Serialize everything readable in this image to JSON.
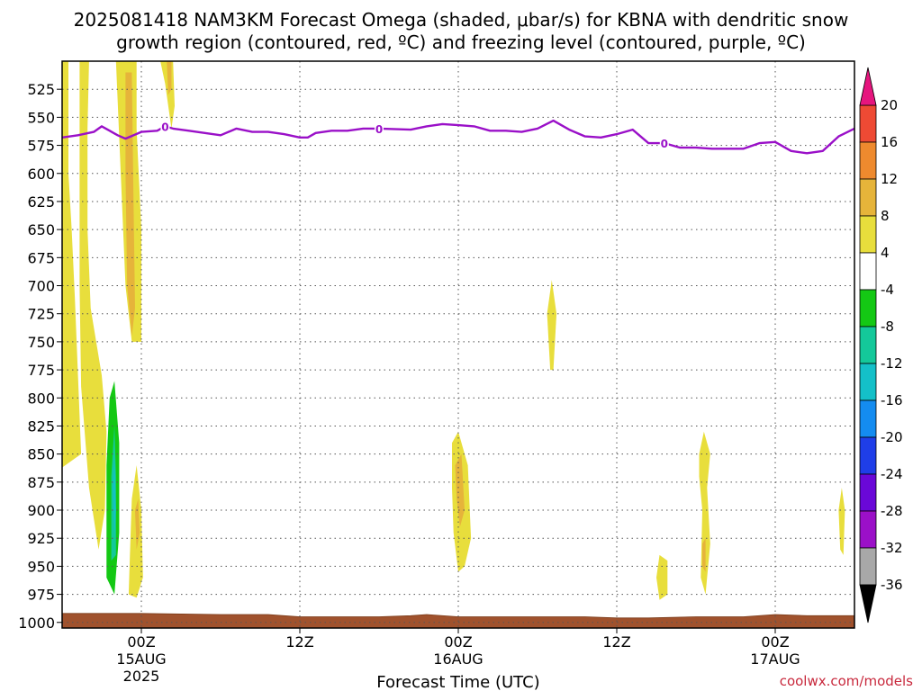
{
  "chart_data": {
    "type": "heatmap",
    "title_line1": "2025081418 NAM3KM Forecast Omega (shaded, μbar/s) for KBNA with dendritic snow",
    "title_line2": "growth region (contoured, red, ºC) and freezing level (contoured, purple, ºC)",
    "xlabel": "Forecast Time (UTC)",
    "credit": "coolwx.com/models",
    "y_ticks": [
      525,
      550,
      575,
      600,
      625,
      650,
      675,
      700,
      725,
      750,
      775,
      800,
      825,
      850,
      875,
      900,
      925,
      950,
      975,
      1000
    ],
    "y_range_hPa": [
      500,
      1005
    ],
    "y_axis_inverted": true,
    "x_range_hours": [
      -5,
      45
    ],
    "x_ticks": [
      {
        "hour": 0,
        "line1": "00Z",
        "line2": "15AUG",
        "line3": "2025"
      },
      {
        "hour": 10,
        "line1": "12Z",
        "line2": "",
        "line3": ""
      },
      {
        "hour": 20,
        "line1": "00Z",
        "line2": "16AUG",
        "line3": ""
      },
      {
        "hour": 30,
        "line1": "12Z",
        "line2": "",
        "line3": ""
      },
      {
        "hour": 40,
        "line1": "00Z",
        "line2": "17AUG",
        "line3": ""
      }
    ],
    "grid": true,
    "colorbar": {
      "levels": [
        -36,
        -32,
        -28,
        -24,
        -20,
        -16,
        -12,
        -8,
        -4,
        4,
        8,
        12,
        16,
        20
      ],
      "label_levels": [
        20,
        16,
        12,
        8,
        4,
        -4,
        -8,
        -12,
        -16,
        -20,
        -24,
        -28,
        -32,
        -36
      ],
      "colors": [
        "#a8a8a8",
        "#9b10c8",
        "#6a08d8",
        "#1f3ee8",
        "#148cf0",
        "#14c0c8",
        "#14c89a",
        "#14c814",
        "#ffffff",
        "#e8de3c",
        "#e6b43a",
        "#ee8a2e",
        "#ee4a34"
      ],
      "below_color": "#000000",
      "above_color": "#e6157e"
    },
    "freezing_level": {
      "label": "0",
      "color": "#9a10c8",
      "hours": [
        -5,
        -4,
        -3,
        -2.5,
        -2,
        -1.5,
        -1,
        0,
        1,
        1.5,
        2,
        3,
        4,
        5,
        6,
        7,
        8,
        9,
        10,
        10.5,
        11,
        12,
        13,
        14,
        15,
        17,
        18,
        19,
        20,
        21,
        22,
        23,
        24,
        25,
        26,
        27,
        28,
        29,
        30,
        31,
        32,
        33,
        34,
        35,
        36,
        37,
        38,
        39,
        40,
        41,
        42,
        43,
        44,
        45
      ],
      "pressures": [
        568,
        566,
        563,
        558,
        562,
        566,
        569,
        563,
        562,
        558,
        560,
        562,
        564,
        566,
        560,
        563,
        563,
        565,
        568,
        568,
        564,
        562,
        562,
        560,
        560,
        561,
        558,
        556,
        557,
        558,
        562,
        562,
        563,
        560,
        553,
        561,
        567,
        568,
        565,
        561,
        573,
        573,
        577,
        577,
        578,
        578,
        578,
        573,
        572,
        580,
        582,
        580,
        567,
        560
      ]
    },
    "omega_regions": [
      {
        "level": 4,
        "points": [
          [
            -5,
            500
          ],
          [
            -4.6,
            500
          ],
          [
            -4.6,
            600
          ],
          [
            -4.4,
            650
          ],
          [
            -4.2,
            710
          ],
          [
            -4,
            780
          ],
          [
            -3.8,
            850
          ],
          [
            -5,
            862
          ]
        ]
      },
      {
        "level": 4,
        "points": [
          [
            -3.9,
            500
          ],
          [
            -3.3,
            500
          ],
          [
            -3.4,
            560
          ],
          [
            -3.4,
            650
          ],
          [
            -3.2,
            720
          ],
          [
            -2.5,
            780
          ],
          [
            -2.2,
            830
          ],
          [
            -2.3,
            900
          ],
          [
            -2.7,
            935
          ],
          [
            -3.3,
            880
          ],
          [
            -3.8,
            790
          ],
          [
            -3.9,
            700
          ]
        ]
      },
      {
        "level": 4,
        "points": [
          [
            -1.6,
            500
          ],
          [
            -0.3,
            500
          ],
          [
            -0.3,
            560
          ],
          [
            0,
            650
          ],
          [
            0,
            750
          ],
          [
            -0.6,
            750
          ],
          [
            -1,
            700
          ],
          [
            -1.3,
            600
          ]
        ]
      },
      {
        "level": 8,
        "points": [
          [
            -1,
            510
          ],
          [
            -0.6,
            510
          ],
          [
            -0.5,
            620
          ],
          [
            -0.4,
            720
          ],
          [
            -0.6,
            745
          ],
          [
            -0.9,
            700
          ],
          [
            -1,
            600
          ]
        ]
      },
      {
        "level": 4,
        "points": [
          [
            -0.6,
            890
          ],
          [
            -0.3,
            860
          ],
          [
            0,
            900
          ],
          [
            0.1,
            960
          ],
          [
            -0.3,
            978
          ],
          [
            -0.8,
            975
          ],
          [
            -0.7,
            930
          ]
        ]
      },
      {
        "level": 8,
        "points": [
          [
            -0.4,
            900
          ],
          [
            -0.2,
            890
          ],
          [
            -0.1,
            920
          ],
          [
            -0.3,
            935
          ]
        ]
      },
      {
        "level": 4,
        "points": [
          [
            1.2,
            500
          ],
          [
            2,
            500
          ],
          [
            2.1,
            540
          ],
          [
            1.9,
            560
          ],
          [
            1.5,
            520
          ]
        ]
      },
      {
        "level": 8,
        "points": [
          [
            1.6,
            500
          ],
          [
            1.9,
            500
          ],
          [
            1.9,
            525
          ],
          [
            1.7,
            530
          ]
        ]
      },
      {
        "level": -4,
        "points": [
          [
            1.5,
            700
          ],
          [
            1.7,
            660
          ],
          [
            1.9,
            605
          ],
          [
            2.1,
            650
          ],
          [
            2.1,
            760
          ],
          [
            1.9,
            760
          ],
          [
            1.6,
            730
          ]
        ]
      },
      {
        "level": -4,
        "points": [
          [
            0.6,
            948
          ],
          [
            1.3,
            948
          ],
          [
            1.3,
            958
          ],
          [
            0.6,
            958
          ]
        ]
      },
      {
        "level": -8,
        "points": [
          [
            -2.2,
            860
          ],
          [
            -2,
            800
          ],
          [
            -1.7,
            785
          ],
          [
            -1.4,
            840
          ],
          [
            -1.4,
            920
          ],
          [
            -1.7,
            975
          ],
          [
            -2.2,
            960
          ]
        ]
      },
      {
        "level": -12,
        "points": [
          [
            -1.9,
            870
          ],
          [
            -1.7,
            825
          ],
          [
            -1.6,
            870
          ],
          [
            -1.6,
            940
          ],
          [
            -1.9,
            945
          ]
        ]
      },
      {
        "level": -16,
        "points": [
          [
            -1.8,
            880
          ],
          [
            -1.7,
            850
          ],
          [
            -1.6,
            900
          ],
          [
            -1.7,
            925
          ]
        ]
      },
      {
        "level": 4,
        "points": [
          [
            25.6,
            725
          ],
          [
            25.9,
            695
          ],
          [
            26.2,
            725
          ],
          [
            26,
            775
          ],
          [
            25.8,
            775
          ]
        ]
      },
      {
        "level": 4,
        "points": [
          [
            19.6,
            840
          ],
          [
            20,
            830
          ],
          [
            20.6,
            860
          ],
          [
            20.8,
            925
          ],
          [
            20.4,
            950
          ],
          [
            20,
            955
          ],
          [
            19.7,
            920
          ],
          [
            19.6,
            880
          ]
        ]
      },
      {
        "level": 8,
        "points": [
          [
            19.8,
            860
          ],
          [
            20.2,
            850
          ],
          [
            20.4,
            900
          ],
          [
            20.1,
            915
          ],
          [
            19.9,
            890
          ]
        ]
      },
      {
        "level": 4,
        "points": [
          [
            35.2,
            850
          ],
          [
            35.5,
            830
          ],
          [
            35.9,
            850
          ],
          [
            35.7,
            880
          ],
          [
            35.9,
            930
          ],
          [
            35.6,
            975
          ],
          [
            35.3,
            960
          ],
          [
            35.4,
            900
          ],
          [
            35.2,
            870
          ]
        ]
      },
      {
        "level": 8,
        "points": [
          [
            35.4,
            930
          ],
          [
            35.6,
            925
          ],
          [
            35.6,
            955
          ],
          [
            35.4,
            950
          ]
        ]
      },
      {
        "level": 4,
        "points": [
          [
            32.5,
            960
          ],
          [
            32.7,
            940
          ],
          [
            33.2,
            945
          ],
          [
            33.2,
            975
          ],
          [
            32.7,
            980
          ]
        ]
      },
      {
        "level": -4,
        "points": [
          [
            43,
            905
          ],
          [
            43.2,
            885
          ],
          [
            43.5,
            900
          ],
          [
            43.4,
            940
          ],
          [
            43.1,
            935
          ]
        ]
      },
      {
        "level": 4,
        "points": [
          [
            44,
            900
          ],
          [
            44.2,
            880
          ],
          [
            44.4,
            900
          ],
          [
            44.3,
            940
          ],
          [
            44.1,
            935
          ]
        ]
      }
    ],
    "terrain": {
      "color": "#a0522d",
      "hours": [
        -5,
        0,
        5,
        8,
        9,
        10,
        15,
        17,
        18,
        20,
        25,
        28,
        30,
        32,
        35,
        38,
        40,
        42,
        45
      ],
      "top_pressures": [
        992,
        992,
        993,
        993,
        994,
        995,
        995,
        994,
        993,
        995,
        995,
        995,
        996,
        996,
        995,
        995,
        993,
        994,
        994
      ]
    }
  }
}
